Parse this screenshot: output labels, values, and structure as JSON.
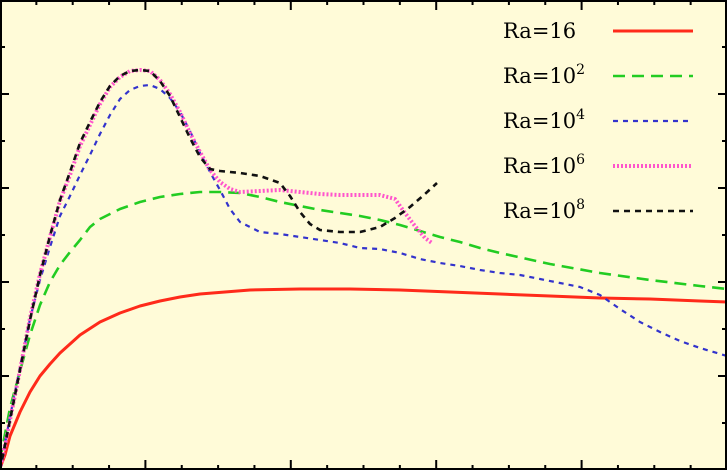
{
  "chart_data": {
    "type": "line",
    "title": "",
    "xlabel": "",
    "ylabel": "",
    "xlim": [
      0,
      727
    ],
    "ylim": [
      0,
      470
    ],
    "grid": false,
    "legend_position": "top-right",
    "series": [
      {
        "name": "Ra=16",
        "legend": {
          "base": "Ra=16",
          "sup": ""
        },
        "color": "#ff2a1a",
        "dash": "solid",
        "points": [
          [
            0,
            2
          ],
          [
            5,
            15
          ],
          [
            10,
            34
          ],
          [
            20,
            58
          ],
          [
            30,
            78
          ],
          [
            40,
            94
          ],
          [
            50,
            106
          ],
          [
            60,
            117
          ],
          [
            70,
            126
          ],
          [
            80,
            135
          ],
          [
            100,
            148
          ],
          [
            120,
            157
          ],
          [
            140,
            164
          ],
          [
            160,
            169
          ],
          [
            180,
            173
          ],
          [
            200,
            176
          ],
          [
            250,
            180
          ],
          [
            300,
            181
          ],
          [
            350,
            181
          ],
          [
            400,
            180
          ],
          [
            450,
            178
          ],
          [
            500,
            176
          ],
          [
            550,
            174
          ],
          [
            600,
            172
          ],
          [
            650,
            171
          ],
          [
            700,
            169
          ],
          [
            727,
            168
          ]
        ]
      },
      {
        "name": "Ra=10^2",
        "legend": {
          "base": "Ra=10",
          "sup": "2"
        },
        "color": "#22cc22",
        "dash": "long",
        "points": [
          [
            0,
            10
          ],
          [
            10,
            62
          ],
          [
            20,
            99
          ],
          [
            30,
            135
          ],
          [
            40,
            165
          ],
          [
            50,
            188
          ],
          [
            60,
            205
          ],
          [
            70,
            218
          ],
          [
            80,
            230
          ],
          [
            90,
            243
          ],
          [
            100,
            251
          ],
          [
            120,
            261
          ],
          [
            140,
            268
          ],
          [
            160,
            273
          ],
          [
            180,
            276
          ],
          [
            200,
            278
          ],
          [
            220,
            278
          ],
          [
            240,
            277
          ],
          [
            260,
            273
          ],
          [
            280,
            268
          ],
          [
            300,
            264
          ],
          [
            320,
            260
          ],
          [
            340,
            257
          ],
          [
            360,
            254
          ],
          [
            380,
            250
          ],
          [
            400,
            245
          ],
          [
            420,
            239
          ],
          [
            440,
            233
          ],
          [
            460,
            228
          ],
          [
            480,
            222
          ],
          [
            500,
            217
          ],
          [
            550,
            206
          ],
          [
            600,
            197
          ],
          [
            650,
            190
          ],
          [
            700,
            184
          ],
          [
            727,
            181
          ]
        ]
      },
      {
        "name": "Ra=10^4",
        "legend": {
          "base": "Ra=10",
          "sup": "4"
        },
        "color": "#3333cc",
        "dash": "short",
        "points": [
          [
            0,
            0
          ],
          [
            10,
            53
          ],
          [
            20,
            103
          ],
          [
            30,
            151
          ],
          [
            40,
            190
          ],
          [
            50,
            223
          ],
          [
            60,
            254
          ],
          [
            70,
            274
          ],
          [
            80,
            295
          ],
          [
            90,
            315
          ],
          [
            100,
            336
          ],
          [
            110,
            355
          ],
          [
            120,
            371
          ],
          [
            130,
            380
          ],
          [
            140,
            384
          ],
          [
            150,
            385
          ],
          [
            160,
            381
          ],
          [
            170,
            372
          ],
          [
            180,
            358
          ],
          [
            190,
            339
          ],
          [
            200,
            317
          ],
          [
            210,
            298
          ],
          [
            220,
            280
          ],
          [
            230,
            261
          ],
          [
            240,
            248
          ],
          [
            260,
            238
          ],
          [
            280,
            236
          ],
          [
            300,
            233
          ],
          [
            320,
            230
          ],
          [
            340,
            227
          ],
          [
            360,
            222
          ],
          [
            380,
            221
          ],
          [
            400,
            217
          ],
          [
            420,
            211
          ],
          [
            440,
            207
          ],
          [
            460,
            204
          ],
          [
            480,
            200
          ],
          [
            500,
            197
          ],
          [
            520,
            195
          ],
          [
            540,
            191
          ],
          [
            560,
            187
          ],
          [
            580,
            183
          ],
          [
            600,
            175
          ],
          [
            620,
            161
          ],
          [
            640,
            148
          ],
          [
            660,
            138
          ],
          [
            680,
            129
          ],
          [
            700,
            122
          ],
          [
            727,
            114
          ]
        ]
      },
      {
        "name": "Ra=10^6",
        "legend": {
          "base": "Ra=10",
          "sup": "6"
        },
        "color": "#ff55cc",
        "dash": "dot",
        "points": [
          [
            0,
            0
          ],
          [
            10,
            50
          ],
          [
            20,
            100
          ],
          [
            30,
            152
          ],
          [
            40,
            196
          ],
          [
            50,
            233
          ],
          [
            60,
            269
          ],
          [
            70,
            295
          ],
          [
            80,
            324
          ],
          [
            90,
            345
          ],
          [
            100,
            366
          ],
          [
            110,
            383
          ],
          [
            120,
            393
          ],
          [
            130,
            399
          ],
          [
            140,
            400
          ],
          [
            150,
            399
          ],
          [
            160,
            390
          ],
          [
            170,
            376
          ],
          [
            180,
            358
          ],
          [
            190,
            337
          ],
          [
            200,
            318
          ],
          [
            210,
            300
          ],
          [
            220,
            288
          ],
          [
            230,
            281
          ],
          [
            240,
            278
          ],
          [
            260,
            279
          ],
          [
            280,
            280
          ],
          [
            300,
            278
          ],
          [
            320,
            276
          ],
          [
            340,
            275
          ],
          [
            360,
            275
          ],
          [
            380,
            275
          ],
          [
            395,
            271
          ],
          [
            405,
            257
          ],
          [
            415,
            244
          ],
          [
            425,
            232
          ],
          [
            432,
            227
          ]
        ]
      },
      {
        "name": "Ra=10^8",
        "legend": {
          "base": "Ra=10",
          "sup": "8"
        },
        "color": "#111111",
        "dash": "dense",
        "points": [
          [
            0,
            0
          ],
          [
            10,
            50
          ],
          [
            20,
            100
          ],
          [
            30,
            150
          ],
          [
            40,
            195
          ],
          [
            50,
            234
          ],
          [
            60,
            270
          ],
          [
            70,
            298
          ],
          [
            80,
            327
          ],
          [
            90,
            348
          ],
          [
            100,
            368
          ],
          [
            110,
            384
          ],
          [
            120,
            394
          ],
          [
            130,
            399
          ],
          [
            140,
            400
          ],
          [
            150,
            399
          ],
          [
            160,
            389
          ],
          [
            170,
            374
          ],
          [
            180,
            353
          ],
          [
            190,
            332
          ],
          [
            200,
            313
          ],
          [
            210,
            301
          ],
          [
            220,
            299
          ],
          [
            240,
            297
          ],
          [
            260,
            294
          ],
          [
            280,
            287
          ],
          [
            290,
            274
          ],
          [
            300,
            258
          ],
          [
            310,
            246
          ],
          [
            320,
            240
          ],
          [
            340,
            238
          ],
          [
            360,
            238
          ],
          [
            380,
            243
          ],
          [
            395,
            252
          ],
          [
            410,
            263
          ],
          [
            425,
            276
          ],
          [
            437,
            287
          ]
        ]
      }
    ]
  }
}
